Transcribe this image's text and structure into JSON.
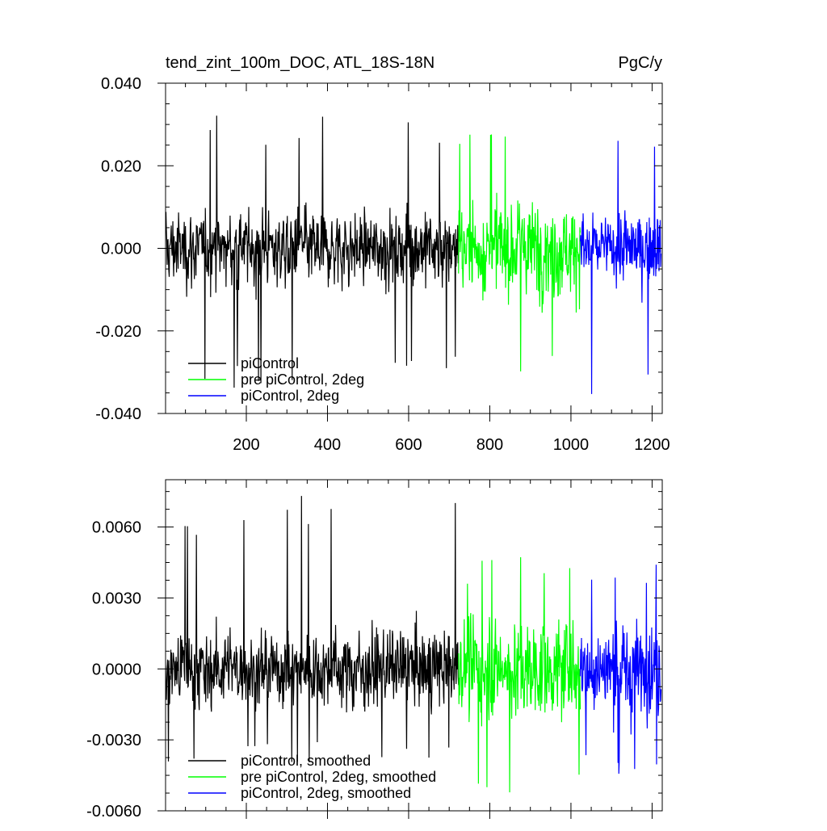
{
  "chart_data": [
    {
      "type": "line",
      "title": "tend_zint_100m_DOC, ATL_18S-18N",
      "units": "PgC/y",
      "xlim": [
        1,
        1225
      ],
      "ylim": [
        -0.04,
        0.04
      ],
      "x_ticks": [
        200,
        400,
        600,
        800,
        1000,
        1200
      ],
      "y_ticks": [
        -0.04,
        -0.02,
        0.0,
        0.02,
        0.04
      ],
      "x_tick_labels": [
        "200",
        "400",
        "600",
        "800",
        "1000",
        "1200"
      ],
      "y_tick_labels": [
        "-0.040",
        "-0.020",
        "0.000",
        "0.020",
        "0.040"
      ],
      "grid": false,
      "legend_position": "bottom-left",
      "series": [
        {
          "name": "piControl",
          "color": "#000000",
          "x_range": [
            1,
            723
          ],
          "amplitude": 0.0095,
          "spike_max": 0.033,
          "spike_min": -0.034,
          "values_note": "noisy annual series"
        },
        {
          "name": "pre piControl, 2deg",
          "color": "#00ff00",
          "x_range": [
            723,
            1023
          ],
          "amplitude": 0.012,
          "spike_max": 0.033,
          "spike_min": -0.031
        },
        {
          "name": "piControl, 2deg",
          "color": "#0000ff",
          "x_range": [
            1023,
            1222
          ],
          "amplitude": 0.009,
          "spike_max": 0.027,
          "spike_min": -0.038
        }
      ]
    },
    {
      "type": "line",
      "xlim": [
        1,
        1225
      ],
      "ylim": [
        -0.006,
        0.008
      ],
      "x_ticks": [
        200,
        400,
        600,
        800,
        1000,
        1200
      ],
      "y_ticks": [
        -0.006,
        -0.003,
        0.0,
        0.003,
        0.006
      ],
      "y_tick_labels": [
        "-0.0060",
        "-0.0030",
        "0.0000",
        "0.0030",
        "0.0060"
      ],
      "grid": false,
      "legend_position": "bottom-left",
      "series": [
        {
          "name": "piControl, smoothed",
          "color": "#000000",
          "x_range": [
            1,
            723
          ],
          "amplitude": 0.0017,
          "spike_max": 0.0075,
          "spike_min": -0.0041
        },
        {
          "name": "pre piControl, 2deg, smoothed",
          "color": "#00ff00",
          "x_range": [
            723,
            1023
          ],
          "amplitude": 0.0022,
          "spike_max": 0.0048,
          "spike_min": -0.0055
        },
        {
          "name": "piControl, 2deg, smoothed",
          "color": "#0000ff",
          "x_range": [
            1023,
            1222
          ],
          "amplitude": 0.002,
          "spike_max": 0.0047,
          "spike_min": -0.0048
        }
      ]
    }
  ]
}
